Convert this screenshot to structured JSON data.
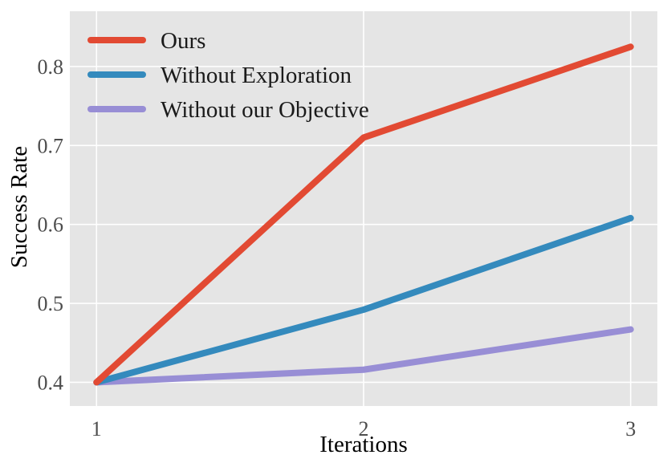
{
  "chart_data": {
    "type": "line",
    "title": "",
    "xlabel": "Iterations",
    "ylabel": "Success Rate",
    "x": [
      1,
      2,
      3
    ],
    "xticks": [
      "1",
      "2",
      "3"
    ],
    "yticks": [
      "0.4",
      "0.5",
      "0.6",
      "0.7",
      "0.8"
    ],
    "xlim": [
      0.9,
      3.1
    ],
    "ylim": [
      0.37,
      0.87
    ],
    "grid": true,
    "legend_position": "top-left",
    "background": "#e5e5e5",
    "series": [
      {
        "name": "Ours",
        "color": "#e24a33",
        "values": [
          0.4,
          0.71,
          0.825
        ]
      },
      {
        "name": "Without Exploration",
        "color": "#348abd",
        "values": [
          0.4,
          0.492,
          0.608
        ]
      },
      {
        "name": "Without our Objective",
        "color": "#988ed5",
        "values": [
          0.4,
          0.416,
          0.467
        ]
      }
    ]
  }
}
